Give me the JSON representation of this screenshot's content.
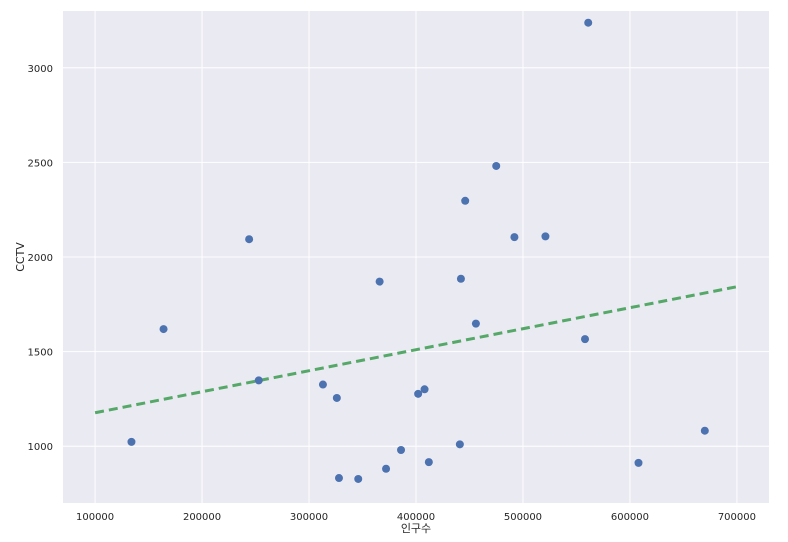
{
  "chart_data": {
    "type": "scatter",
    "title": "",
    "xlabel": "인구수",
    "ylabel": "CCTV",
    "xlim": [
      70000,
      730000
    ],
    "ylim": [
      700,
      3300
    ],
    "x_ticks": [
      100000,
      200000,
      300000,
      400000,
      500000,
      600000,
      700000
    ],
    "y_ticks": [
      1000,
      1500,
      2000,
      2500,
      3000
    ],
    "x_tick_labels": [
      "100000",
      "200000",
      "300000",
      "400000",
      "500000",
      "600000",
      "700000"
    ],
    "y_tick_labels": [
      "1000",
      "1500",
      "2000",
      "2500",
      "3000"
    ],
    "grid": true,
    "background": "#eaeaf2",
    "point_color": "#4c72b0",
    "trend_color": "#55a868",
    "points": [
      {
        "x": 561000,
        "y": 3238
      },
      {
        "x": 475000,
        "y": 2481
      },
      {
        "x": 446000,
        "y": 2297
      },
      {
        "x": 492000,
        "y": 2105
      },
      {
        "x": 521000,
        "y": 2109
      },
      {
        "x": 244000,
        "y": 2094
      },
      {
        "x": 366000,
        "y": 1870
      },
      {
        "x": 442000,
        "y": 1885
      },
      {
        "x": 456000,
        "y": 1648
      },
      {
        "x": 164000,
        "y": 1619
      },
      {
        "x": 558000,
        "y": 1566
      },
      {
        "x": 253000,
        "y": 1348
      },
      {
        "x": 313000,
        "y": 1326
      },
      {
        "x": 326000,
        "y": 1255
      },
      {
        "x": 402000,
        "y": 1277
      },
      {
        "x": 408000,
        "y": 1301
      },
      {
        "x": 134000,
        "y": 1023
      },
      {
        "x": 441000,
        "y": 1010
      },
      {
        "x": 386000,
        "y": 980
      },
      {
        "x": 412000,
        "y": 916
      },
      {
        "x": 372000,
        "y": 881
      },
      {
        "x": 328000,
        "y": 832
      },
      {
        "x": 346000,
        "y": 827
      },
      {
        "x": 608000,
        "y": 912
      },
      {
        "x": 670000,
        "y": 1082
      }
    ],
    "trend_line": {
      "x": [
        100000,
        700000
      ],
      "y": [
        1177,
        1843
      ],
      "style": "dashed"
    }
  }
}
